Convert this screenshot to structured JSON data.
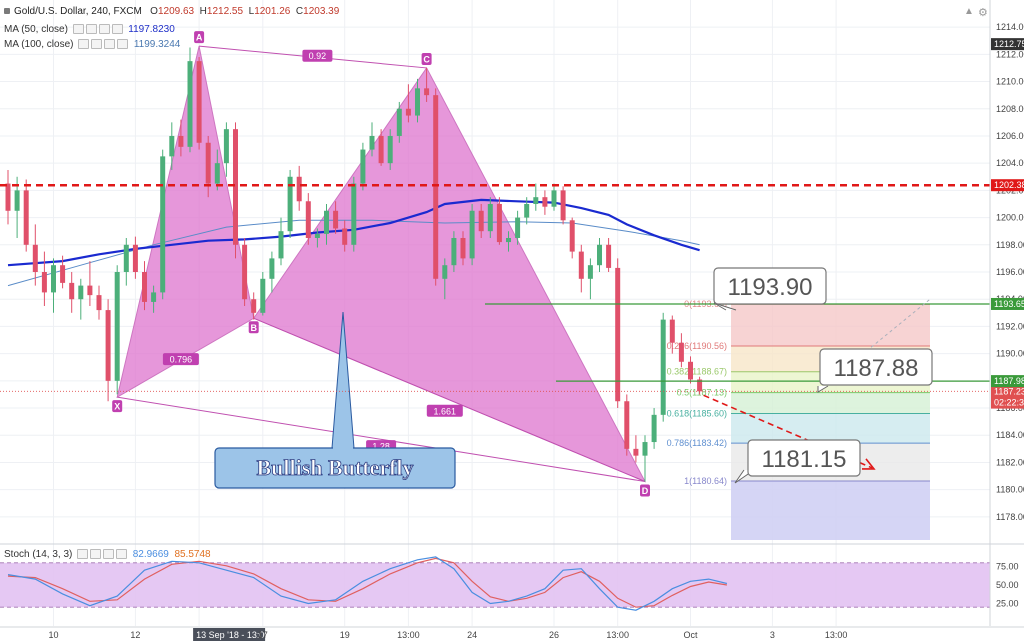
{
  "header": {
    "symbol": "Gold/U.S. Dollar, 240, FXCM",
    "o_label": "O",
    "o_value": "1209.63",
    "h_label": "H",
    "h_value": "1212.55",
    "l_label": "L",
    "l_value": "1201.26",
    "c_label": "C",
    "c_value": "1203.39",
    "ma50_label": "MA (50, close)",
    "ma50_value": "1197.8230",
    "ma100_label": "MA (100, close)",
    "ma100_value": "1199.3244",
    "stoch_label": "Stoch (14, 3, 3)",
    "stoch_k": "82.9669",
    "stoch_d": "85.5748"
  },
  "colors": {
    "bull": "#4caf7a",
    "bear": "#e0506a",
    "ma50": "#1a2ad0",
    "ma100": "#5a8cc8",
    "pattern_fill": "#e07ad0",
    "pattern_stroke": "#c050b0",
    "resistance": "#e01818",
    "green_line": "#3a9a3a",
    "stoch_k": "#4a8ee0",
    "stoch_d": "#e06060",
    "stoch_band": "#e2c2f2"
  },
  "chart_data": {
    "type": "candlestick",
    "title": "Gold/U.S. Dollar, 240, FXCM",
    "y_ticks": [
      "1214.00",
      "1212.00",
      "1210.00",
      "1208.00",
      "1206.00",
      "1204.00",
      "1202.00",
      "1200.00",
      "1198.00",
      "1196.00",
      "1194.00",
      "1192.00",
      "1190.00",
      "1188.00",
      "1186.00",
      "1184.00",
      "1182.00",
      "1180.00",
      "1178.00"
    ],
    "ylim": [
      1176.3,
      1215.7
    ],
    "x_ticks": [
      {
        "label": "10",
        "i": 5
      },
      {
        "label": "12",
        "i": 14
      },
      {
        "label": "13 Sep '18 - 13:00",
        "i": 21,
        "highlight": true
      },
      {
        "label": "17",
        "i": 28
      },
      {
        "label": "19",
        "i": 37
      },
      {
        "label": "13:00",
        "i": 44
      },
      {
        "label": "24",
        "i": 51
      },
      {
        "label": "26",
        "i": 60
      },
      {
        "label": "13:00",
        "i": 67
      },
      {
        "label": "Oct",
        "i": 75
      },
      {
        "label": "3",
        "i": 84
      },
      {
        "label": "13:00",
        "i": 91
      }
    ],
    "ohlc": [
      [
        1202.5,
        1203.5,
        1199.5,
        1200.5
      ],
      [
        1200.5,
        1203.0,
        1198.5,
        1202.0
      ],
      [
        1202.0,
        1202.8,
        1197.5,
        1198.0
      ],
      [
        1198.0,
        1199.5,
        1195.0,
        1196.0
      ],
      [
        1196.0,
        1197.5,
        1193.5,
        1194.5
      ],
      [
        1194.5,
        1197.0,
        1193.0,
        1196.5
      ],
      [
        1196.5,
        1197.2,
        1194.8,
        1195.2
      ],
      [
        1195.2,
        1196.0,
        1193.0,
        1194.0
      ],
      [
        1194.0,
        1195.5,
        1192.5,
        1195.0
      ],
      [
        1195.0,
        1196.8,
        1193.5,
        1194.3
      ],
      [
        1194.3,
        1195.0,
        1192.5,
        1193.2
      ],
      [
        1193.2,
        1194.0,
        1186.5,
        1188.0
      ],
      [
        1188.0,
        1196.5,
        1187.0,
        1196.0
      ],
      [
        1196.0,
        1198.5,
        1195.0,
        1198.0
      ],
      [
        1198.0,
        1198.6,
        1195.5,
        1196.0
      ],
      [
        1196.0,
        1196.8,
        1193.2,
        1193.8
      ],
      [
        1193.8,
        1195.0,
        1193.0,
        1194.5
      ],
      [
        1194.5,
        1205.0,
        1194.0,
        1204.5
      ],
      [
        1204.5,
        1207.0,
        1203.5,
        1206.0
      ],
      [
        1206.0,
        1207.2,
        1204.5,
        1205.2
      ],
      [
        1205.2,
        1212.5,
        1204.8,
        1211.5
      ],
      [
        1211.5,
        1211.8,
        1205.0,
        1205.5
      ],
      [
        1205.5,
        1206.0,
        1201.5,
        1202.5
      ],
      [
        1202.5,
        1205.0,
        1202.0,
        1204.0
      ],
      [
        1204.0,
        1207.0,
        1203.0,
        1206.5
      ],
      [
        1206.5,
        1207.0,
        1197.0,
        1198.0
      ],
      [
        1198.0,
        1198.5,
        1193.5,
        1194.0
      ],
      [
        1194.0,
        1194.5,
        1192.5,
        1193.0
      ],
      [
        1193.0,
        1196.0,
        1192.8,
        1195.5
      ],
      [
        1195.5,
        1197.5,
        1194.5,
        1197.0
      ],
      [
        1197.0,
        1200.0,
        1196.5,
        1199.0
      ],
      [
        1199.0,
        1203.5,
        1198.5,
        1203.0
      ],
      [
        1203.0,
        1203.8,
        1200.5,
        1201.2
      ],
      [
        1201.2,
        1201.8,
        1198.0,
        1198.5
      ],
      [
        1198.5,
        1199.2,
        1197.8,
        1198.8
      ],
      [
        1198.8,
        1201.0,
        1198.0,
        1200.5
      ],
      [
        1200.5,
        1201.2,
        1198.8,
        1199.2
      ],
      [
        1199.2,
        1199.8,
        1197.5,
        1198.0
      ],
      [
        1198.0,
        1203.0,
        1197.5,
        1202.5
      ],
      [
        1202.5,
        1205.5,
        1202.0,
        1205.0
      ],
      [
        1205.0,
        1207.0,
        1204.5,
        1206.0
      ],
      [
        1206.0,
        1206.5,
        1203.8,
        1204.0
      ],
      [
        1204.0,
        1206.5,
        1203.5,
        1206.0
      ],
      [
        1206.0,
        1208.5,
        1205.5,
        1208.0
      ],
      [
        1208.0,
        1209.8,
        1207.0,
        1207.5
      ],
      [
        1207.5,
        1210.2,
        1207.0,
        1209.5
      ],
      [
        1209.5,
        1211.0,
        1208.5,
        1209.0
      ],
      [
        1209.0,
        1209.5,
        1195.0,
        1195.5
      ],
      [
        1195.5,
        1197.0,
        1194.0,
        1196.5
      ],
      [
        1196.5,
        1199.0,
        1196.0,
        1198.5
      ],
      [
        1198.5,
        1199.0,
        1196.5,
        1197.0
      ],
      [
        1197.0,
        1201.0,
        1196.5,
        1200.5
      ],
      [
        1200.5,
        1201.0,
        1198.5,
        1199.0
      ],
      [
        1199.0,
        1201.5,
        1198.5,
        1201.0
      ],
      [
        1201.0,
        1201.5,
        1198.0,
        1198.2
      ],
      [
        1198.2,
        1199.0,
        1197.5,
        1198.5
      ],
      [
        1198.5,
        1200.5,
        1198.0,
        1200.0
      ],
      [
        1200.0,
        1201.5,
        1199.5,
        1201.0
      ],
      [
        1201.0,
        1202.5,
        1200.5,
        1201.5
      ],
      [
        1201.5,
        1202.0,
        1200.2,
        1200.8
      ],
      [
        1200.8,
        1202.5,
        1200.5,
        1202.0
      ],
      [
        1202.0,
        1202.3,
        1199.5,
        1199.8
      ],
      [
        1199.8,
        1200.0,
        1197.0,
        1197.5
      ],
      [
        1197.5,
        1198.0,
        1194.5,
        1195.5
      ],
      [
        1195.5,
        1197.0,
        1194.0,
        1196.5
      ],
      [
        1196.5,
        1198.5,
        1196.0,
        1198.0
      ],
      [
        1198.0,
        1198.5,
        1196.0,
        1196.3
      ],
      [
        1196.3,
        1197.0,
        1186.0,
        1186.5
      ],
      [
        1186.5,
        1187.0,
        1182.5,
        1183.0
      ],
      [
        1183.0,
        1184.0,
        1182.0,
        1182.5
      ],
      [
        1182.5,
        1184.0,
        1180.6,
        1183.5
      ],
      [
        1183.5,
        1186.0,
        1183.0,
        1185.5
      ],
      [
        1185.5,
        1193.0,
        1185.0,
        1192.5
      ],
      [
        1192.5,
        1192.8,
        1190.0,
        1190.8
      ],
      [
        1190.8,
        1191.5,
        1189.0,
        1189.4
      ],
      [
        1189.4,
        1189.8,
        1187.8,
        1188.1
      ],
      [
        1188.1,
        1188.3,
        1187.0,
        1187.23
      ]
    ],
    "ma50": [
      [
        0,
        1196.5
      ],
      [
        6,
        1196.8
      ],
      [
        10,
        1197.3
      ],
      [
        14,
        1197.7
      ],
      [
        18,
        1198.0
      ],
      [
        22,
        1198.3
      ],
      [
        26,
        1198.4
      ],
      [
        30,
        1198.6
      ],
      [
        34,
        1198.9
      ],
      [
        38,
        1199.1
      ],
      [
        42,
        1199.6
      ],
      [
        46,
        1200.4
      ],
      [
        48,
        1201.0
      ],
      [
        52,
        1201.3
      ],
      [
        56,
        1201.2
      ],
      [
        60,
        1201.1
      ],
      [
        63,
        1200.7
      ],
      [
        66,
        1200.2
      ],
      [
        68,
        1199.5
      ],
      [
        71,
        1198.7
      ],
      [
        74,
        1198.0
      ],
      [
        76,
        1197.6
      ]
    ],
    "ma100": [
      [
        0,
        1195.0
      ],
      [
        8,
        1196.5
      ],
      [
        16,
        1198.0
      ],
      [
        24,
        1199.3
      ],
      [
        32,
        1199.8
      ],
      [
        40,
        1199.8
      ],
      [
        48,
        1199.6
      ],
      [
        56,
        1199.7
      ],
      [
        62,
        1199.6
      ],
      [
        68,
        1199.0
      ],
      [
        74,
        1198.3
      ],
      [
        76,
        1198.0
      ]
    ],
    "resistance_level": 1202.38,
    "butterfly_pattern": {
      "points": [
        {
          "label": "X",
          "i": 12,
          "price": 1186.8
        },
        {
          "label": "A",
          "i": 21,
          "price": 1212.6
        },
        {
          "label": "B",
          "i": 27,
          "price": 1192.6
        },
        {
          "label": "C",
          "i": 46,
          "price": 1211.0
        },
        {
          "label": "D",
          "i": 70,
          "price": 1180.6
        }
      ],
      "ratios": [
        {
          "label": "0.92",
          "i": 34,
          "price": 1211.9
        },
        {
          "label": "0.796",
          "i": 19,
          "price": 1189.6
        },
        {
          "label": "1.661",
          "i": 48,
          "price": 1185.8
        },
        {
          "label": "1.28",
          "i": 41,
          "price": 1183.2
        }
      ],
      "name": "Bullish Butterfly"
    },
    "fibonacci": {
      "levels": [
        {
          "ratio": "0(1193.63)",
          "price": 1193.63,
          "fill": "#f5c8c8",
          "line": "#e08a8a"
        },
        {
          "ratio": "0.236(1190.56)",
          "price": 1190.56,
          "fill": "#f8e6c8",
          "line": "#e07a7a"
        },
        {
          "ratio": "0.382(1188.67)",
          "price": 1188.67,
          "fill": "#e8f4c8",
          "line": "#9ac86a"
        },
        {
          "ratio": "0.5(1187.13)",
          "price": 1187.13,
          "fill": "#d4f0d4",
          "line": "#7ac86a"
        },
        {
          "ratio": "0.618(1185.60)",
          "price": 1185.6,
          "fill": "#cce8ee",
          "line": "#48b0a0"
        },
        {
          "ratio": "0.786(1183.42)",
          "price": 1183.42,
          "fill": "#e8e8e8",
          "line": "#6090d0"
        },
        {
          "ratio": "1(1180.64)",
          "price": 1180.64,
          "fill": "#d0d0f4",
          "line": "#8888cc"
        }
      ]
    },
    "callouts": [
      {
        "text": "1193.90",
        "price": 1193.9
      },
      {
        "text": "1187.88",
        "price": 1187.88
      },
      {
        "text": "1181.15",
        "price": 1181.15
      }
    ],
    "green_lines": [
      {
        "price": 1193.65,
        "badge": "1193.65"
      },
      {
        "price": 1187.98,
        "badge": "1187.98"
      }
    ],
    "price_badges": [
      {
        "text": "1212.75",
        "price": 1212.75,
        "bg": "#333333",
        "fg": "#ffffff"
      },
      {
        "text": "1202.38",
        "price": 1202.38,
        "bg": "#e01818",
        "fg": "#ffffff"
      },
      {
        "text": "1187.23",
        "price": 1187.23,
        "bg": "#e05050",
        "fg": "#ffffff"
      },
      {
        "text": "02:22:39",
        "price": 1186.4,
        "bg": "#e05050",
        "fg": "#ffffff"
      }
    ],
    "stochastic": {
      "levels": [
        "75.00",
        "50.00",
        "25.00"
      ],
      "band": [
        20,
        80
      ],
      "k": [
        [
          0,
          64
        ],
        [
          3,
          58
        ],
        [
          6,
          38
        ],
        [
          9,
          22
        ],
        [
          12,
          35
        ],
        [
          15,
          70
        ],
        [
          18,
          82
        ],
        [
          21,
          80
        ],
        [
          24,
          70
        ],
        [
          27,
          60
        ],
        [
          30,
          35
        ],
        [
          33,
          25
        ],
        [
          36,
          30
        ],
        [
          39,
          55
        ],
        [
          42,
          72
        ],
        [
          45,
          84
        ],
        [
          47,
          88
        ],
        [
          49,
          72
        ],
        [
          51,
          40
        ],
        [
          53,
          25
        ],
        [
          55,
          28
        ],
        [
          57,
          35
        ],
        [
          59,
          45
        ],
        [
          61,
          70
        ],
        [
          63,
          72
        ],
        [
          65,
          45
        ],
        [
          67,
          20
        ],
        [
          69,
          16
        ],
        [
          71,
          28
        ],
        [
          73,
          45
        ],
        [
          75,
          55
        ],
        [
          77,
          58
        ],
        [
          79,
          52
        ]
      ],
      "d": [
        [
          0,
          62
        ],
        [
          3,
          60
        ],
        [
          6,
          45
        ],
        [
          9,
          28
        ],
        [
          12,
          30
        ],
        [
          15,
          58
        ],
        [
          18,
          78
        ],
        [
          21,
          82
        ],
        [
          24,
          76
        ],
        [
          27,
          65
        ],
        [
          30,
          45
        ],
        [
          33,
          30
        ],
        [
          36,
          28
        ],
        [
          39,
          45
        ],
        [
          42,
          65
        ],
        [
          45,
          80
        ],
        [
          47,
          86
        ],
        [
          49,
          80
        ],
        [
          51,
          55
        ],
        [
          53,
          34
        ],
        [
          55,
          28
        ],
        [
          57,
          32
        ],
        [
          59,
          40
        ],
        [
          61,
          60
        ],
        [
          63,
          68
        ],
        [
          65,
          55
        ],
        [
          67,
          32
        ],
        [
          69,
          20
        ],
        [
          71,
          22
        ],
        [
          73,
          36
        ],
        [
          75,
          48
        ],
        [
          77,
          54
        ],
        [
          79,
          50
        ]
      ]
    }
  }
}
